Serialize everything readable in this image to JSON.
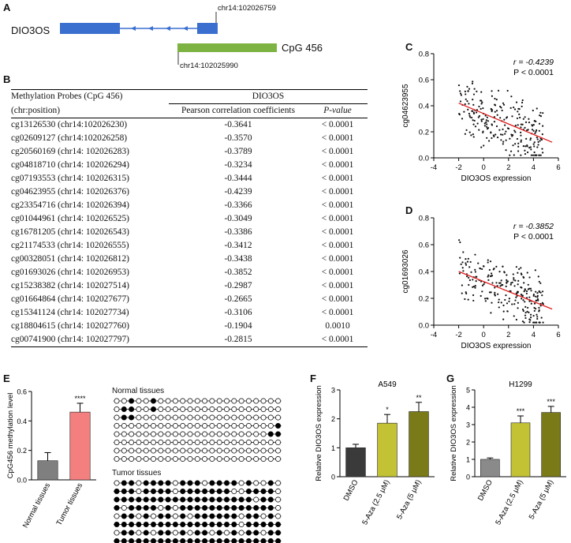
{
  "panel_labels": {
    "a": "A",
    "b": "B",
    "c": "C",
    "d": "D",
    "e": "E",
    "f": "F",
    "g": "G"
  },
  "panel_a": {
    "gene_label": "DIO3OS",
    "coord_top": "chr14:102026759",
    "cpg_label": "CpG 456",
    "coord_bottom": "chr14:102025990",
    "colors": {
      "exon": "#3a6fcf",
      "cpg": "#7cb342"
    }
  },
  "table": {
    "header_col1_line1": "Methylation Probes (CpG 456)",
    "header_col1_line2": "(chr:position)",
    "header_group": "DIO3OS",
    "header_pearson": "Pearson correlation coefficients",
    "header_pvalue": "P-value",
    "rows": [
      {
        "probe": "cg13126530 (chr14:102026230)",
        "r": "-0.3641",
        "p": "< 0.0001"
      },
      {
        "probe": "cg02609127 (chr14:102026258)",
        "r": "-0.3570",
        "p": "< 0.0001"
      },
      {
        "probe": "cg20560169 (chr14: 102026283)",
        "r": "-0.3789",
        "p": "< 0.0001"
      },
      {
        "probe": "cg04818710 (chr14: 102026294)",
        "r": "-0.3234",
        "p": "< 0.0001"
      },
      {
        "probe": "cg07193553 (chr14: 102026315)",
        "r": "-0.3444",
        "p": "< 0.0001"
      },
      {
        "probe": "cg04623955 (chr14: 102026376)",
        "r": "-0.4239",
        "p": "< 0.0001"
      },
      {
        "probe": "cg23354716 (chr14: 102026394)",
        "r": "-0.3366",
        "p": "< 0.0001"
      },
      {
        "probe": "cg01044961 (chr14: 102026525)",
        "r": "-0.3049",
        "p": "< 0.0001"
      },
      {
        "probe": "cg16781205 (chr14: 102026543)",
        "r": "-0.3386",
        "p": "< 0.0001"
      },
      {
        "probe": "cg21174533 (chr14: 102026555)",
        "r": "-0.3412",
        "p": "< 0.0001"
      },
      {
        "probe": "cg00328051 (chr14: 102026812)",
        "r": "-0.3438",
        "p": "< 0.0001"
      },
      {
        "probe": "cg01693026 (chr14: 102026953)",
        "r": "-0.3852",
        "p": "< 0.0001"
      },
      {
        "probe": "cg15238382 (chr14: 102027514)",
        "r": "-0.2987",
        "p": "< 0.0001"
      },
      {
        "probe": "cg01664864 (chr14: 102027677)",
        "r": "-0.2665",
        "p": "< 0.0001"
      },
      {
        "probe": "cg15341124 (chr14: 102027734)",
        "r": "-0.3106",
        "p": "< 0.0001"
      },
      {
        "probe": "cg18804615 (chr14: 102027760)",
        "r": "-0.1904",
        "p": "0.0010"
      },
      {
        "probe": "cg00741900 (chr14: 102027797)",
        "r": "-0.2815",
        "p": "< 0.0001"
      }
    ]
  },
  "panel_e": {
    "normal_title": "Normal tissues",
    "tumor_title": "Tumor tissues",
    "normal_pattern": [
      "00100100000000000000000",
      "01100100000000000000000",
      "01100000000000000000000",
      "00000000000000000000001",
      "00000000000000000000011",
      "00000000000000000000000",
      "00000000000000000000000",
      "00000000000000000000000"
    ],
    "tumor_pattern": [
      "01101111011101111010010",
      "11101111011111110011110",
      "11111111111111111110110",
      "10111101011111111111110",
      "01101011010111111011010",
      "11111111111111111011111",
      "01101011010110101011011",
      "11111111111111111111111"
    ]
  },
  "chart_data": [
    {
      "panel": "C",
      "type": "scatter",
      "title": "",
      "xlabel": "DIO3OS expression",
      "ylabel": "cg04623955",
      "xlim": [
        -4,
        6
      ],
      "ylim": [
        0.0,
        0.8
      ],
      "xticks": [
        "-4",
        "-2",
        "0",
        "2",
        "4",
        "6"
      ],
      "yticks": [
        "0.0",
        "0.2",
        "0.4",
        "0.6",
        "0.8"
      ],
      "annotation_r": "r = -0.4239",
      "annotation_p": "P < 0.0001",
      "fit_line": {
        "x": [
          -2,
          5.5
        ],
        "y": [
          0.42,
          0.12
        ]
      },
      "seed": 7
    },
    {
      "panel": "D",
      "type": "scatter",
      "title": "",
      "xlabel": "DIO3OS expression",
      "ylabel": "cg01693026",
      "xlim": [
        -4,
        6
      ],
      "ylim": [
        0.0,
        0.8
      ],
      "xticks": [
        "-4",
        "-2",
        "0",
        "2",
        "4",
        "6"
      ],
      "yticks": [
        "0.0",
        "0.2",
        "0.4",
        "0.6",
        "0.8"
      ],
      "annotation_r": "r = -0.3852",
      "annotation_p": "P < 0.0001",
      "fit_line": {
        "x": [
          -2,
          5.5
        ],
        "y": [
          0.4,
          0.12
        ]
      },
      "seed": 13
    },
    {
      "panel": "E",
      "type": "bar",
      "categories": [
        "Normal tissues",
        "Tumor tissues"
      ],
      "values": [
        0.13,
        0.46
      ],
      "errors": [
        0.055,
        0.06
      ],
      "colors": [
        "#7f7f7f",
        "#f47f7f"
      ],
      "ylabel": "CpG456 methylation level",
      "ylim": [
        0,
        0.6
      ],
      "yticks": [
        "0.0",
        "0.2",
        "0.4",
        "0.6"
      ],
      "sig": [
        "",
        "****"
      ]
    },
    {
      "panel": "F",
      "type": "bar",
      "title": "A549",
      "categories": [
        "DMSO",
        "5-Aza (2.5 μM)",
        "5-Aza (5 μM)"
      ],
      "values": [
        1.0,
        1.85,
        2.25
      ],
      "errors": [
        0.12,
        0.3,
        0.32
      ],
      "colors": [
        "#3a3a3a",
        "#c2c234",
        "#7a7a18"
      ],
      "ylabel": "Relative DIO3OS expression",
      "ylim": [
        0,
        3
      ],
      "yticks": [
        "0",
        "1",
        "2",
        "3"
      ],
      "sig": [
        "",
        "*",
        "**"
      ]
    },
    {
      "panel": "G",
      "type": "bar",
      "title": "H1299",
      "categories": [
        "DMSO",
        "5-Aza (2.5 μM)",
        "5-Aza (5 μM)"
      ],
      "values": [
        1.0,
        3.1,
        3.7
      ],
      "errors": [
        0.08,
        0.4,
        0.35
      ],
      "colors": [
        "#8a8a8a",
        "#c2c234",
        "#7a7a18"
      ],
      "ylabel": "Relative DIO3OS expression",
      "ylim": [
        0,
        5
      ],
      "yticks": [
        "0",
        "1",
        "2",
        "3",
        "4",
        "5"
      ],
      "sig": [
        "",
        "***",
        "***"
      ]
    }
  ]
}
